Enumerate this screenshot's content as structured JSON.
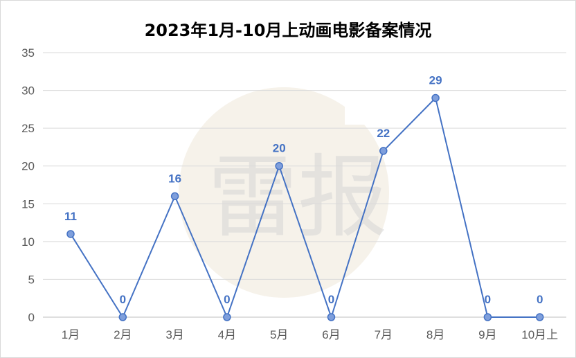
{
  "chart_data": {
    "type": "line",
    "title": "2023年1月-10月上动画电影备案情况",
    "categories": [
      "1月",
      "2月",
      "3月",
      "4月",
      "5月",
      "6月",
      "7月",
      "8月",
      "9月",
      "10月上"
    ],
    "values": [
      11,
      0,
      16,
      0,
      20,
      0,
      22,
      29,
      0,
      0
    ],
    "ylim": [
      0,
      35
    ],
    "yticks": [
      0,
      5,
      10,
      15,
      20,
      25,
      30,
      35
    ],
    "grid": true,
    "data_labels": true,
    "line_color": "#4472c4",
    "marker_fill": "#7f9fdc"
  },
  "watermark": {
    "text": "雷报"
  }
}
